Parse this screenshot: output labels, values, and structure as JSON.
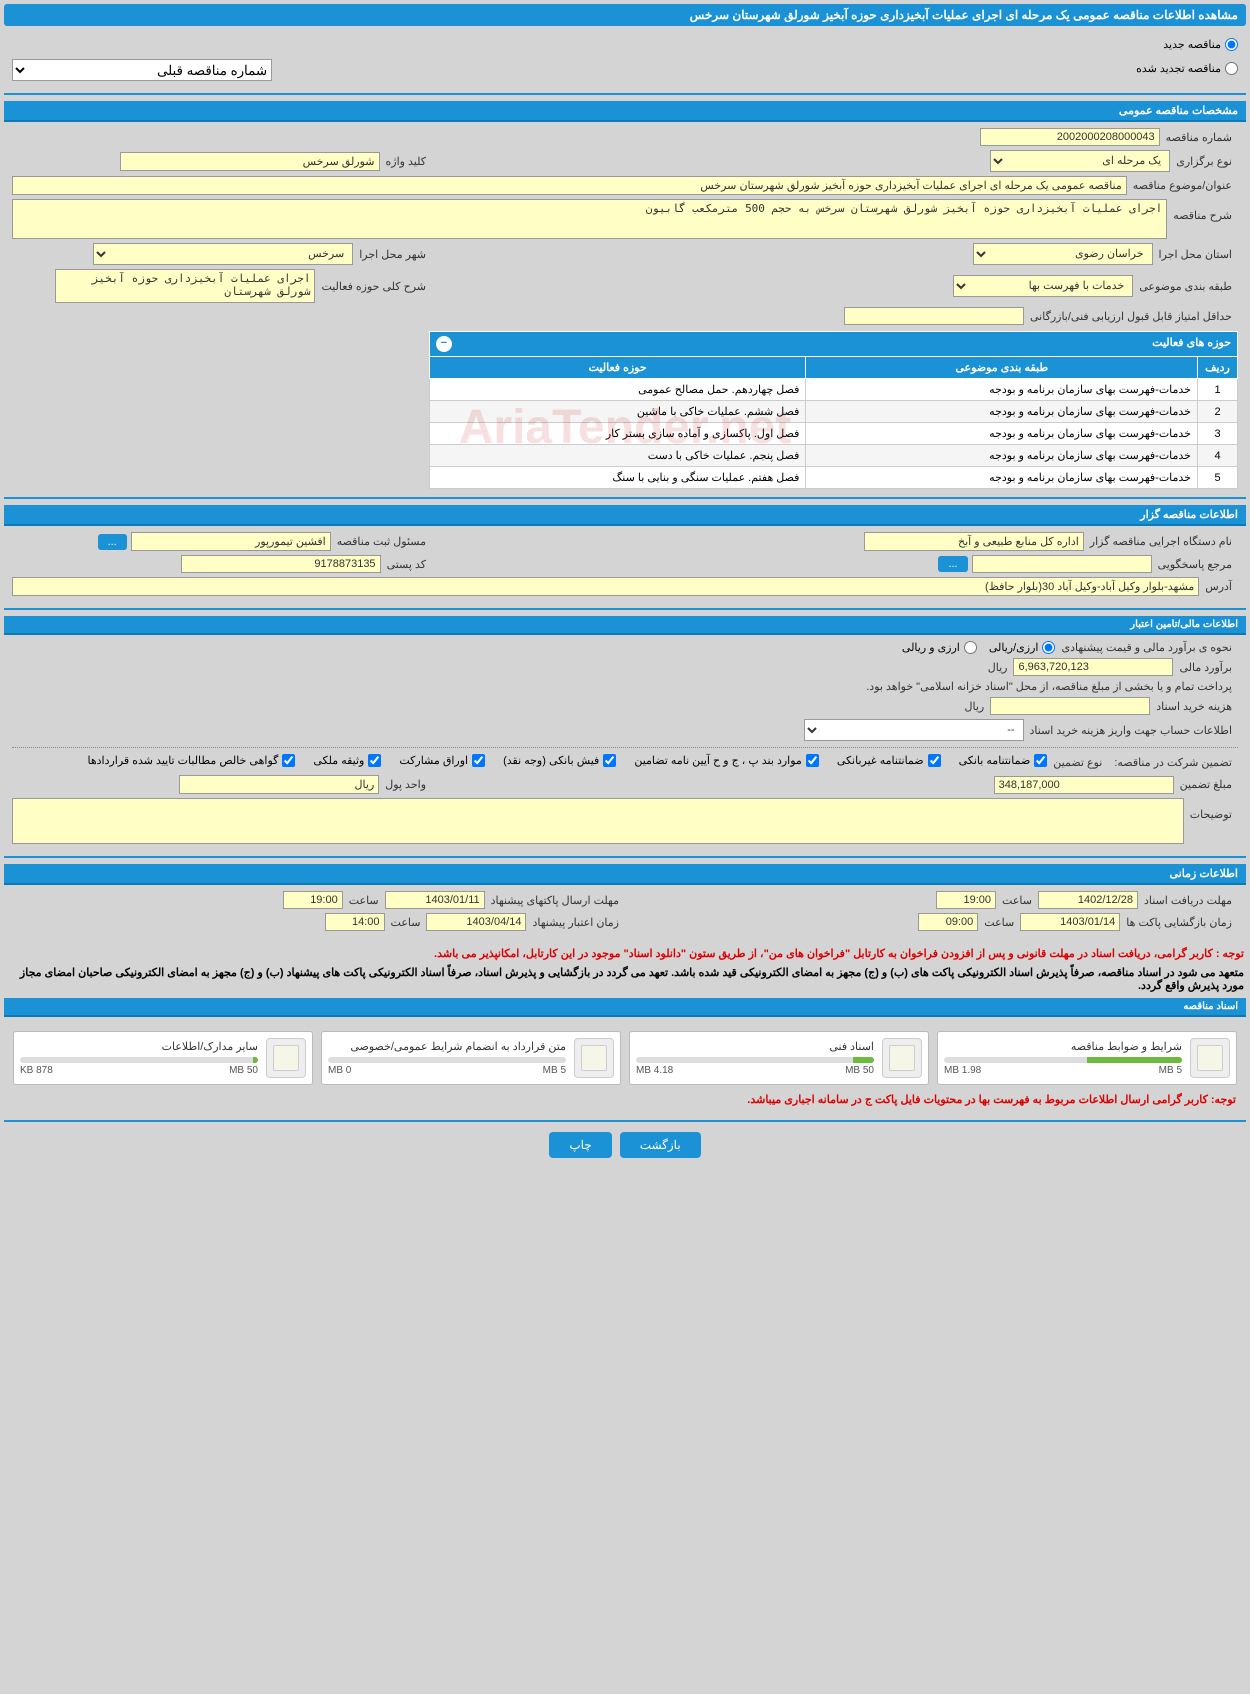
{
  "page_title": "مشاهده اطلاعات مناقصه عمومی یک مرحله ای اجرای عملیات آبخیزداری حوزه آبخیز شورلق شهرستان سرخس",
  "top_options": {
    "new": "مناقصه جدید",
    "renewed": "مناقصه تجدید شده",
    "prev_number_label": "شماره مناقصه قبلی",
    "prev_number_value": "--"
  },
  "sections": {
    "general": "مشخصات مناقصه عمومی",
    "activities": "حوزه های فعالیت",
    "organizer": "اطلاعات مناقصه گزار",
    "financial": "اطلاعات مالی/تامین اعتبار",
    "timing": "اطلاعات زمانی",
    "docs": "اسناد مناقصه"
  },
  "general": {
    "tender_number_label": "شماره مناقصه",
    "tender_number": "2002000208000043",
    "type_label": "نوع برگزاری",
    "type_value": "یک مرحله ای",
    "keyword_label": "کلید واژه",
    "keyword_value": "شورلق سرخس",
    "title_label": "عنوان/موضوع مناقصه",
    "title_value": "مناقصه عمومی یک مرحله ای اجرای عملیات آبخیزداری حوزه آبخیز شورلق شهرستان سرخس",
    "desc_label": "شرح مناقصه",
    "desc_value": "اجرای عملیات آبخیزداری حوزه آبخیز شورلق شهرستان سرخس به حجم 500 مترمکعب گابیون",
    "province_label": "استان محل اجرا",
    "province_value": "خراسان رضوی",
    "city_label": "شهر محل اجرا",
    "city_value": "سرخس",
    "subject_class_label": "طبقه بندی موضوعی",
    "subject_class_value": "خدمات با فهرست بها",
    "activity_scope_label": "شرح کلی حوزه فعالیت",
    "activity_scope_value": "اجرای عملیات آبخیزداری حوزه آبخیز شورلق شهرستان",
    "min_score_label": "حداقل امتیاز قابل قبول ارزیابی فنی/بازرگانی",
    "min_score_value": ""
  },
  "activity_table": {
    "col_row": "ردیف",
    "col_subject": "طبقه بندی موضوعی",
    "col_field": "حوزه فعالیت",
    "rows": [
      {
        "n": "1",
        "subject": "خدمات-فهرست بهای سازمان برنامه و بودجه",
        "field": "فصل چهاردهم. حمل مصالح عمومی"
      },
      {
        "n": "2",
        "subject": "خدمات-فهرست بهای سازمان برنامه و بودجه",
        "field": "فصل ششم. عملیات خاکی با ماشین"
      },
      {
        "n": "3",
        "subject": "خدمات-فهرست بهای سازمان برنامه و بودجه",
        "field": "فصل اول. پاکسازی و آماده سازی بستر کار"
      },
      {
        "n": "4",
        "subject": "خدمات-فهرست بهای سازمان برنامه و بودجه",
        "field": "فصل پنجم. عملیات خاکی با دست"
      },
      {
        "n": "5",
        "subject": "خدمات-فهرست بهای سازمان برنامه و بودجه",
        "field": "فصل هفتم. عملیات سنگی و بنایی با سنگ"
      }
    ]
  },
  "organizer": {
    "agency_label": "نام دستگاه اجرایی مناقصه گزار",
    "agency_value": "اداره کل منابع طبیعی و آبخ",
    "registrar_label": "مسئول ثبت مناقصه",
    "registrar_value": "افشین تیمورپور",
    "more_btn": "...",
    "contact_label": "مرجع پاسخگویی",
    "contact_value": "",
    "postal_label": "کد پستی",
    "postal_value": "9178873135",
    "address_label": "آدرس",
    "address_value": "مشهد-بلوار وکیل آباد-وکیل آباد 30(بلوار حافظ)"
  },
  "financial": {
    "estimate_method_label": "نحوه ی برآورد مالی و قیمت پیشنهادی",
    "opt_rial": "ارزی/ریالی",
    "opt_both": "ارزی و ریالی",
    "estimate_label": "برآورد مالی",
    "estimate_value": "6,963,720,123",
    "currency": "ریال",
    "payment_note": "پرداخت تمام و یا بخشی از مبلغ مناقصه، از محل \"اسناد خزانه اسلامی\" خواهد بود.",
    "doc_cost_label": "هزینه خرید اسناد",
    "doc_cost_value": "",
    "doc_cost_unit": "ریال",
    "deposit_account_label": "اطلاعات حساب جهت واریز هزینه خرید اسناد",
    "deposit_account_value": "--",
    "guarantee_label": "تضمین شرکت در مناقصه:",
    "guarantee_type_label": "نوع تضمین",
    "chk_bank_guarantee": "ضمانتنامه بانکی",
    "chk_nonbank_guarantee": "ضمانتنامه غیربانکی",
    "chk_cases": "موارد بند پ ، ج و ح آیین نامه تضامین",
    "chk_bank_receipt": "فیش بانکی (وجه نقد)",
    "chk_participation": "اوراق مشارکت",
    "chk_property": "وثیقه ملکی",
    "chk_contract_cert": "گواهی خالص مطالبات تایید شده قراردادها",
    "guarantee_amount_label": "مبلغ تضمین",
    "guarantee_amount_value": "348,187,000",
    "unit_label": "واحد پول",
    "unit_value": "ریال",
    "explain_label": "توضیحات",
    "explain_value": ""
  },
  "timing": {
    "doc_deadline_label": "مهلت دریافت اسناد",
    "doc_deadline_date": "1402/12/28",
    "doc_deadline_time_label": "ساعت",
    "doc_deadline_time": "19:00",
    "proposal_deadline_label": "مهلت ارسال پاکتهای پیشنهاد",
    "proposal_deadline_date": "1403/01/11",
    "proposal_deadline_time_label": "ساعت",
    "proposal_deadline_time": "19:00",
    "opening_label": "زمان بازگشایی پاکت ها",
    "opening_date": "1403/01/14",
    "opening_time_label": "ساعت",
    "opening_time": "09:00",
    "validity_label": "زمان اعتبار پیشنهاد",
    "validity_date": "1403/04/14",
    "validity_time_label": "ساعت",
    "validity_time": "14:00"
  },
  "notices": {
    "n1": "توجه : کاربر گرامی، دریافت اسناد در مهلت قانونی و پس از افزودن فراخوان به کارتابل \"فراخوان های من\"، از طریق ستون \"دانلود اسناد\" موجود در این کارتابل، امکانپذیر می باشد.",
    "n2": "متعهد می شود در اسناد مناقصه، صرفاً پذیرش اسناد الکترونیکی پاکت های (ب) و (ج) مجهز به امضای الکترونیکی قید شده باشد. تعهد می گردد در بازگشایی و پذیرش اسناد، صرفاً اسناد الکترونیکی پاکت های پیشنهاد (ب) و (ج) مجهز به امضای الکترونیکی صاحبان امضای مجاز مورد پذیرش واقع گردد.",
    "n3": "توجه: کاربر گرامی ارسال اطلاعات مربوط به فهرست بها در محتویات فایل پاکت ج در سامانه اجباری میباشد."
  },
  "docs": [
    {
      "title": "شرایط و ضوابط مناقصه",
      "used": "1.98 MB",
      "total": "5 MB",
      "pct": 40
    },
    {
      "title": "اسناد فنی",
      "used": "4.18 MB",
      "total": "50 MB",
      "pct": 9
    },
    {
      "title": "متن قرارداد به انضمام شرایط عمومی/خصوصی",
      "used": "0 MB",
      "total": "5 MB",
      "pct": 0
    },
    {
      "title": "سایر مدارک/اطلاعات",
      "used": "878 KB",
      "total": "50 MB",
      "pct": 2
    }
  ],
  "footer": {
    "back": "بازگشت",
    "print": "چاپ"
  },
  "watermark": "AriaTender.net"
}
